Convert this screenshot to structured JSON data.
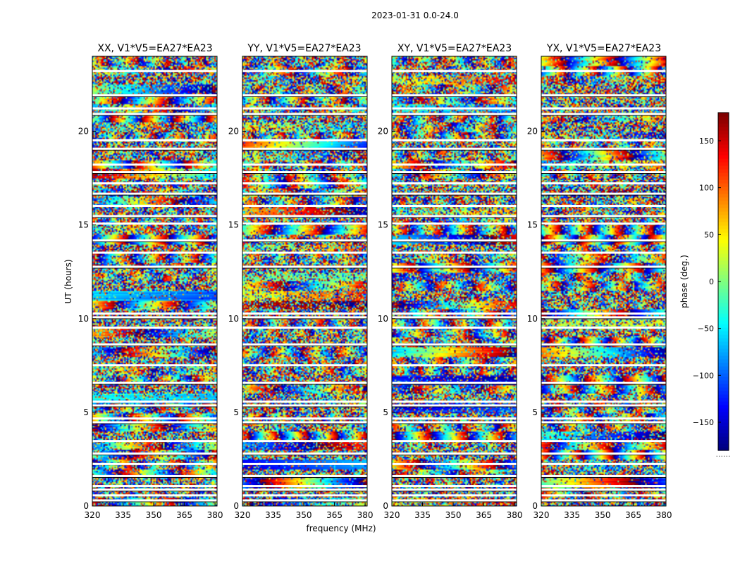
{
  "chart_data": {
    "type": "heatmap",
    "suptitle": "2023-01-31 0.0-24.0",
    "xlabel": "frequency (MHz)",
    "ylabel": "UT (hours)",
    "xlim": [
      320,
      381
    ],
    "ylim": [
      0,
      24
    ],
    "xticks": [
      320,
      335,
      350,
      365,
      380
    ],
    "yticks": [
      0,
      5,
      10,
      15,
      20
    ],
    "colormap": "jet",
    "colorbar": {
      "label": "phase (deg.)",
      "range": [
        -180,
        180
      ],
      "ticks": [
        150,
        100,
        50,
        0,
        -50,
        -100,
        -150
      ],
      "tick_labels": [
        "150",
        "100",
        "50",
        "0",
        "−50",
        "−100",
        "−150"
      ],
      "extra_label": "......"
    },
    "panels": [
      {
        "title": "XX, V1*V5=EA27*EA23",
        "correlation": "XX"
      },
      {
        "title": "YY, V1*V5=EA27*EA23",
        "correlation": "YY"
      },
      {
        "title": "XY, V1*V5=EA27*EA23",
        "correlation": "XY"
      },
      {
        "title": "YX, V1*V5=EA27*EA23",
        "correlation": "YX"
      }
    ],
    "flagged_gaps_hours": [
      0.28,
      0.55,
      0.85,
      1.05,
      1.58,
      2.22,
      2.78,
      3.45,
      4.45,
      4.65,
      5.35,
      5.55,
      6.55,
      7.5,
      8.6,
      9.5,
      10.05,
      10.25,
      12.75,
      13.5,
      14.15,
      15.05,
      15.45,
      16.0,
      16.65,
      17.2,
      17.8,
      18.2,
      19.05,
      19.5,
      20.9,
      21.2,
      21.9,
      23.2
    ]
  }
}
